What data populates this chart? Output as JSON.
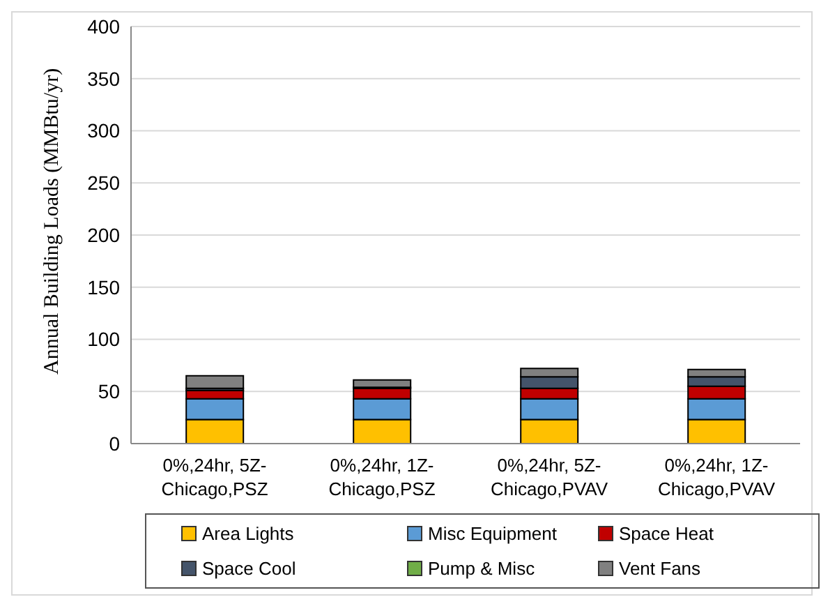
{
  "chart_data": {
    "type": "bar",
    "stacked": true,
    "ylabel": "Annual Building Loads (MMBtu/yr)",
    "categories": [
      "0%,24hr, 5Z-Chicago,PSZ",
      "0%,24hr, 1Z-Chicago,PSZ",
      "0%,24hr, 5Z-Chicago,PVAV",
      "0%,24hr, 1Z-Chicago,PVAV"
    ],
    "series": [
      {
        "name": "Area Lights",
        "color": "#ffc000",
        "values": [
          23,
          23,
          23,
          23
        ]
      },
      {
        "name": "Misc Equipment",
        "color": "#5b9bd5",
        "values": [
          20,
          20,
          20,
          20
        ]
      },
      {
        "name": "Space Heat",
        "color": "#c00000",
        "values": [
          8,
          10,
          10,
          12
        ]
      },
      {
        "name": "Space Cool",
        "color": "#44546a",
        "values": [
          2,
          1,
          11,
          9
        ]
      },
      {
        "name": "Pump & Misc",
        "color": "#70ad47",
        "values": [
          0,
          0,
          0,
          0
        ]
      },
      {
        "name": "Vent Fans",
        "color": "#808080",
        "values": [
          12,
          7,
          8,
          7
        ]
      }
    ],
    "ylim": [
      0,
      400
    ],
    "yticks": [
      0,
      50,
      100,
      150,
      200,
      250,
      300,
      350,
      400
    ],
    "grid": "y",
    "legend": "bottom"
  }
}
